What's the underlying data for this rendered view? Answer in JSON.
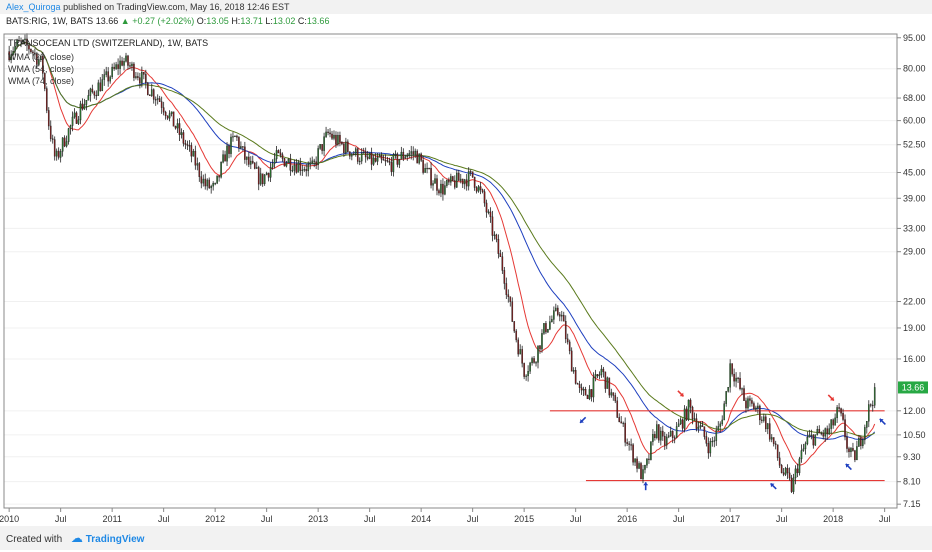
{
  "header": {
    "author": "Alex_Quiroga",
    "published": "published on TradingView.com, May 16, 2018 12:46 EST"
  },
  "quote": {
    "symbol": "BATS:RIG, 1W, BATS",
    "last": "13.66",
    "change": "+0.27 (+2.02%)",
    "open_label": "O:",
    "open": "13.05",
    "high_label": "H:",
    "high": "13.71",
    "low_label": "L:",
    "low": "13.02",
    "close_label": "C:",
    "close": "13.66"
  },
  "footer": {
    "created_with": "Created with",
    "brand": "TradingView"
  },
  "chart_data": {
    "type": "candlestick",
    "title": "TRANSOCEAN LTD (SWITZERLAND), 1W, BATS",
    "y_scale": "log",
    "ylim": [
      7.0,
      97.0
    ],
    "y_ticks": [
      95.0,
      80.0,
      68.0,
      60.0,
      52.5,
      45.0,
      39.0,
      33.0,
      29.0,
      22.0,
      19.0,
      16.0,
      12.0,
      10.5,
      9.3,
      8.1,
      7.15
    ],
    "y_tick_labels": [
      "95.00",
      "80.00",
      "68.00",
      "60.00",
      "52.50",
      "45.00",
      "39.00",
      "33.00",
      "29.00",
      "22.00",
      "19.00",
      "16.00",
      "12.00",
      "10.50",
      "9.30",
      "8.10",
      "7.15"
    ],
    "x_ticks": [
      2010.0,
      2010.5,
      2011.0,
      2011.5,
      2012.0,
      2012.5,
      2013.0,
      2013.5,
      2014.0,
      2014.5,
      2015.0,
      2015.5,
      2016.0,
      2016.5,
      2017.0,
      2017.5,
      2018.0,
      2018.5
    ],
    "x_tick_labels": [
      "2010",
      "Jul",
      "2011",
      "Jul",
      "2012",
      "Jul",
      "2013",
      "Jul",
      "2014",
      "Jul",
      "2015",
      "Jul",
      "2016",
      "Jul",
      "2017",
      "Jul",
      "2018",
      "Jul"
    ],
    "xlim": [
      2009.95,
      2018.62
    ],
    "last_price_label": "13.66",
    "last_price": 13.66,
    "anchors": [
      [
        2010.0,
        88
      ],
      [
        2010.1,
        92
      ],
      [
        2010.2,
        90
      ],
      [
        2010.32,
        82
      ],
      [
        2010.38,
        60
      ],
      [
        2010.45,
        48
      ],
      [
        2010.55,
        55
      ],
      [
        2010.7,
        65
      ],
      [
        2010.85,
        72
      ],
      [
        2011.0,
        78
      ],
      [
        2011.1,
        84
      ],
      [
        2011.15,
        82
      ],
      [
        2011.25,
        78
      ],
      [
        2011.35,
        72
      ],
      [
        2011.45,
        68
      ],
      [
        2011.55,
        62
      ],
      [
        2011.65,
        56
      ],
      [
        2011.8,
        48
      ],
      [
        2011.9,
        42
      ],
      [
        2012.0,
        41
      ],
      [
        2012.1,
        50
      ],
      [
        2012.2,
        55
      ],
      [
        2012.3,
        48
      ],
      [
        2012.45,
        43
      ],
      [
        2012.6,
        49
      ],
      [
        2012.8,
        47
      ],
      [
        2012.95,
        46
      ],
      [
        2013.0,
        50
      ],
      [
        2013.1,
        56
      ],
      [
        2013.2,
        53
      ],
      [
        2013.35,
        50
      ],
      [
        2013.5,
        48
      ],
      [
        2013.7,
        47
      ],
      [
        2013.85,
        50
      ],
      [
        2013.95,
        50
      ],
      [
        2014.05,
        45
      ],
      [
        2014.2,
        41
      ],
      [
        2014.35,
        43
      ],
      [
        2014.5,
        44
      ],
      [
        2014.6,
        39
      ],
      [
        2014.7,
        32
      ],
      [
        2014.8,
        26
      ],
      [
        2014.9,
        19
      ],
      [
        2015.0,
        15
      ],
      [
        2015.1,
        16
      ],
      [
        2015.2,
        19
      ],
      [
        2015.35,
        21
      ],
      [
        2015.45,
        16
      ],
      [
        2015.55,
        13
      ],
      [
        2015.65,
        13.5
      ],
      [
        2015.75,
        15
      ],
      [
        2015.85,
        13
      ],
      [
        2015.95,
        11
      ],
      [
        2016.05,
        9.5
      ],
      [
        2016.15,
        8.3
      ],
      [
        2016.2,
        9
      ],
      [
        2016.28,
        11
      ],
      [
        2016.35,
        10
      ],
      [
        2016.45,
        10.5
      ],
      [
        2016.55,
        11.5
      ],
      [
        2016.6,
        12.3
      ],
      [
        2016.7,
        11
      ],
      [
        2016.8,
        9.8
      ],
      [
        2016.9,
        11
      ],
      [
        2016.97,
        13.5
      ],
      [
        2017.0,
        15.5
      ],
      [
        2017.05,
        14.5
      ],
      [
        2017.15,
        12.5
      ],
      [
        2017.25,
        12.2
      ],
      [
        2017.35,
        11.2
      ],
      [
        2017.42,
        10
      ],
      [
        2017.5,
        8.6
      ],
      [
        2017.55,
        8.3
      ],
      [
        2017.6,
        7.8
      ],
      [
        2017.65,
        8.8
      ],
      [
        2017.75,
        10.2
      ],
      [
        2017.85,
        10.5
      ],
      [
        2017.95,
        10.6
      ],
      [
        2018.0,
        11.2
      ],
      [
        2018.05,
        12.0
      ],
      [
        2018.1,
        11
      ],
      [
        2018.15,
        9.5
      ],
      [
        2018.2,
        9.2
      ],
      [
        2018.28,
        10.5
      ],
      [
        2018.35,
        12.2
      ],
      [
        2018.42,
        13.66
      ]
    ],
    "indicators": [
      {
        "name": "WMA (20, close)",
        "color": "#e53935"
      },
      {
        "name": "WMA (54, close)",
        "color": "#1e3fbf"
      },
      {
        "name": "WMA (74, close)",
        "color": "#5a7a1c"
      }
    ],
    "support_resistance_lines": [
      {
        "value": 12.0,
        "x_from": 2015.25,
        "x_to": 2018.5,
        "color": "#e53935"
      },
      {
        "value": 8.15,
        "x_from": 2015.6,
        "x_to": 2018.5,
        "color": "#e53935"
      }
    ],
    "arrows": [
      {
        "x": 2015.57,
        "y": 11.4,
        "dir": "down-left",
        "color": "#1e3fbf"
      },
      {
        "x": 2016.18,
        "y": 7.9,
        "dir": "up",
        "color": "#1e3fbf"
      },
      {
        "x": 2016.52,
        "y": 13.2,
        "dir": "down-right",
        "color": "#e53935"
      },
      {
        "x": 2017.42,
        "y": 7.9,
        "dir": "up-left",
        "color": "#1e3fbf"
      },
      {
        "x": 2017.98,
        "y": 12.9,
        "dir": "down-right",
        "color": "#e53935"
      },
      {
        "x": 2018.15,
        "y": 8.8,
        "dir": "up-left",
        "color": "#1e3fbf"
      },
      {
        "x": 2018.48,
        "y": 11.3,
        "dir": "up-left",
        "color": "#1e3fbf"
      }
    ]
  }
}
